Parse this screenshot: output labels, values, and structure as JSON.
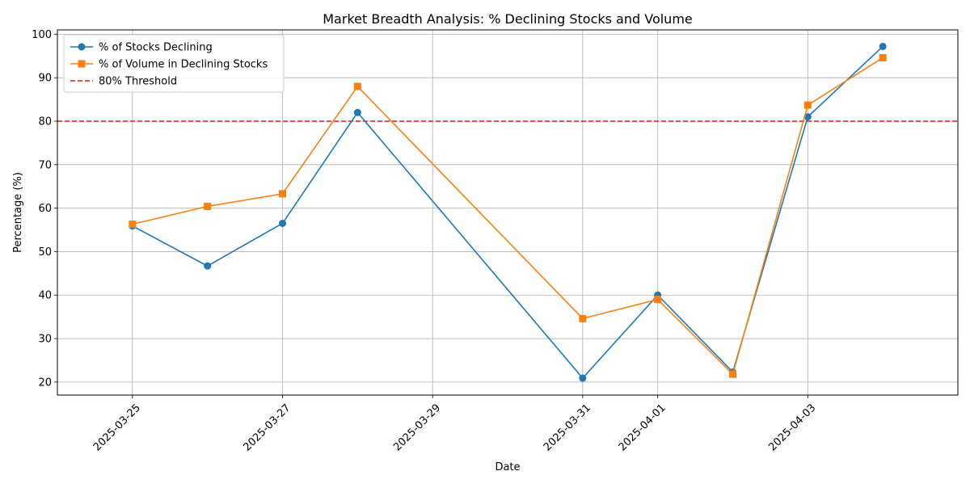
{
  "chart_data": {
    "type": "line",
    "title": "Market Breadth Analysis: % Declining Stocks and Volume",
    "xlabel": "Date",
    "ylabel": "Percentage (%)",
    "x": [
      "2025-03-25",
      "2025-03-26",
      "2025-03-27",
      "2025-03-28",
      "2025-03-31",
      "2025-04-01",
      "2025-04-02",
      "2025-04-03",
      "2025-04-04"
    ],
    "x_tick_labels": [
      "2025-03-25",
      "2025-03-27",
      "2025-03-29",
      "2025-03-31",
      "2025-04-01",
      "2025-04-03"
    ],
    "xlim": [
      "2025-03-24",
      "2025-04-05"
    ],
    "y_ticks": [
      20,
      30,
      40,
      50,
      60,
      70,
      80,
      90,
      100
    ],
    "ylim": [
      17,
      101
    ],
    "grid": true,
    "legend_position": "upper-left",
    "series": [
      {
        "name": "% of Stocks Declining",
        "color": "#1f77b4",
        "marker": "circle",
        "values": [
          55.9,
          46.7,
          56.5,
          82.0,
          20.9,
          40.0,
          22.3,
          81.0,
          97.2
        ]
      },
      {
        "name": "% of Volume in Declining Stocks",
        "color": "#ff7f0e",
        "marker": "square",
        "values": [
          56.3,
          60.4,
          63.3,
          88.0,
          34.6,
          39.0,
          21.8,
          83.7,
          94.6
        ]
      }
    ],
    "reference_lines": [
      {
        "name": "80% Threshold",
        "value": 80,
        "color": "#e41a1c",
        "style": "dashed"
      }
    ]
  }
}
